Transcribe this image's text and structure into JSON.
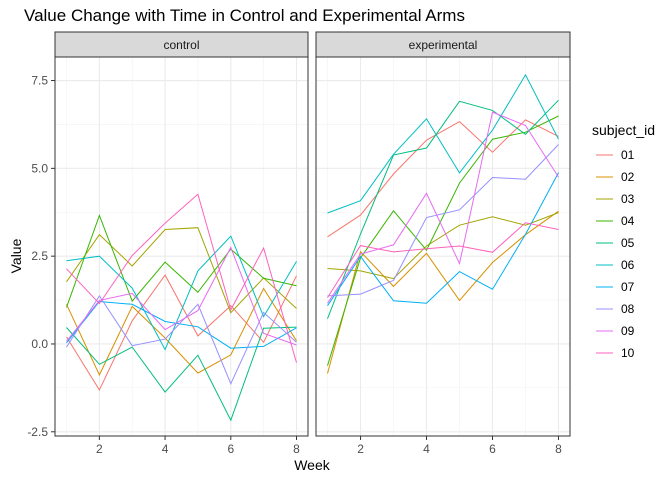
{
  "chart_data": {
    "type": "line",
    "title": "Value Change with Time in Control and Experimental Arms",
    "xlabel": "Week",
    "ylabel": "Value",
    "x": [
      1,
      2,
      3,
      4,
      5,
      6,
      7,
      8
    ],
    "xticks": [
      2,
      4,
      6,
      8
    ],
    "xlim": [
      0.65,
      8.35
    ],
    "yticks": [
      -2.5,
      0.0,
      2.5,
      5.0,
      7.5
    ],
    "ytick_labels": [
      "-2.5",
      "0.0",
      "2.5",
      "5.0",
      "7.5"
    ],
    "ylim": [
      -2.62,
      8.17
    ],
    "grid": true,
    "legend": {
      "title": "subject_id",
      "placement": "right",
      "items": [
        {
          "label": "01",
          "color": "#F8766D"
        },
        {
          "label": "02",
          "color": "#D89000"
        },
        {
          "label": "03",
          "color": "#A3A500"
        },
        {
          "label": "04",
          "color": "#39B600"
        },
        {
          "label": "05",
          "color": "#00BF7D"
        },
        {
          "label": "06",
          "color": "#00BFC4"
        },
        {
          "label": "07",
          "color": "#00B0F6"
        },
        {
          "label": "08",
          "color": "#9590FF"
        },
        {
          "label": "09",
          "color": "#E76BF3"
        },
        {
          "label": "10",
          "color": "#FF62BC"
        }
      ]
    },
    "facets": [
      {
        "label": "control",
        "series": [
          {
            "subject": "01",
            "values": [
              0.2,
              -1.31,
              0.66,
              1.96,
              0.23,
              1.09,
              0.05,
              1.94
            ]
          },
          {
            "subject": "02",
            "values": [
              1.13,
              -0.88,
              1.07,
              0.17,
              -0.83,
              -0.31,
              1.58,
              0.09
            ]
          },
          {
            "subject": "03",
            "values": [
              1.77,
              3.11,
              2.22,
              3.26,
              3.31,
              0.89,
              1.88,
              1.01
            ]
          },
          {
            "subject": "04",
            "values": [
              1.04,
              3.66,
              1.22,
              2.33,
              1.47,
              2.7,
              1.87,
              1.66
            ]
          },
          {
            "subject": "05",
            "values": [
              0.47,
              -0.58,
              -0.09,
              -1.37,
              -0.32,
              -2.17,
              0.45,
              0.48
            ]
          },
          {
            "subject": "06",
            "values": [
              2.37,
              2.5,
              1.59,
              -0.16,
              2.08,
              3.07,
              0.78,
              2.35
            ]
          },
          {
            "subject": "07",
            "values": [
              0.03,
              1.21,
              1.13,
              0.64,
              0.49,
              -0.12,
              -0.07,
              0.46
            ]
          },
          {
            "subject": "08",
            "values": [
              -0.09,
              1.37,
              -0.05,
              0.14,
              1.13,
              -1.13,
              0.9,
              0.05
            ]
          },
          {
            "subject": "09",
            "values": [
              0.08,
              1.24,
              1.44,
              0.41,
              0.95,
              2.75,
              0.3,
              -0.03
            ]
          },
          {
            "subject": "10",
            "values": [
              2.14,
              1.15,
              2.52,
              3.44,
              4.26,
              0.97,
              2.73,
              -0.53
            ]
          }
        ]
      },
      {
        "label": "experimental",
        "series": [
          {
            "subject": "01",
            "values": [
              3.05,
              3.67,
              4.84,
              5.8,
              6.33,
              5.46,
              6.38,
              5.91
            ]
          },
          {
            "subject": "02",
            "values": [
              -0.84,
              2.63,
              1.64,
              2.58,
              1.24,
              2.32,
              3.11,
              3.78
            ]
          },
          {
            "subject": "03",
            "values": [
              2.15,
              2.08,
              1.86,
              2.79,
              3.38,
              3.62,
              3.38,
              3.74
            ]
          },
          {
            "subject": "04",
            "values": [
              -0.62,
              2.45,
              3.79,
              2.67,
              4.58,
              5.83,
              6.03,
              6.49
            ]
          },
          {
            "subject": "05",
            "values": [
              0.72,
              3.13,
              5.38,
              5.58,
              6.91,
              6.65,
              5.97,
              6.94
            ]
          },
          {
            "subject": "06",
            "values": [
              3.73,
              4.08,
              5.4,
              6.41,
              4.87,
              6.09,
              7.66,
              5.83
            ]
          },
          {
            "subject": "07",
            "values": [
              1.09,
              2.49,
              1.23,
              1.16,
              2.06,
              1.56,
              3.12,
              4.88
            ]
          },
          {
            "subject": "08",
            "values": [
              1.37,
              1.42,
              1.81,
              3.6,
              3.82,
              4.74,
              4.69,
              5.68
            ]
          },
          {
            "subject": "09",
            "values": [
              1.16,
              2.56,
              2.82,
              4.29,
              2.29,
              6.6,
              6.22,
              4.75
            ]
          },
          {
            "subject": "10",
            "values": [
              1.32,
              2.8,
              2.62,
              2.71,
              2.79,
              2.61,
              3.45,
              3.26
            ]
          }
        ]
      }
    ]
  }
}
